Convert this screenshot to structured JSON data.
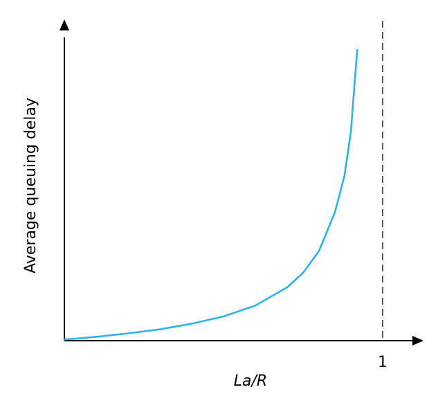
{
  "chart_data": {
    "type": "line",
    "title": "",
    "xlabel": "La/R",
    "ylabel": "Average queuing delay",
    "xlim": [
      0,
      1.14
    ],
    "ylim": [
      0,
      13
    ],
    "x_ticks": [
      {
        "value": 1,
        "label": "1"
      }
    ],
    "reference_lines": [
      {
        "orientation": "vertical",
        "x": 1,
        "style": "dashed"
      }
    ],
    "series": [
      {
        "color": "#2ab4e6",
        "x": [
          0,
          0.05,
          0.1,
          0.2,
          0.3,
          0.4,
          0.5,
          0.6,
          0.7,
          0.75,
          0.8,
          0.85,
          0.88,
          0.9,
          0.92
        ],
        "y": [
          0.05,
          0.1,
          0.16,
          0.3,
          0.47,
          0.7,
          1.0,
          1.45,
          2.2,
          2.8,
          3.7,
          5.3,
          6.8,
          8.6,
          12.0
        ]
      }
    ],
    "grid": false,
    "legend": "none"
  }
}
